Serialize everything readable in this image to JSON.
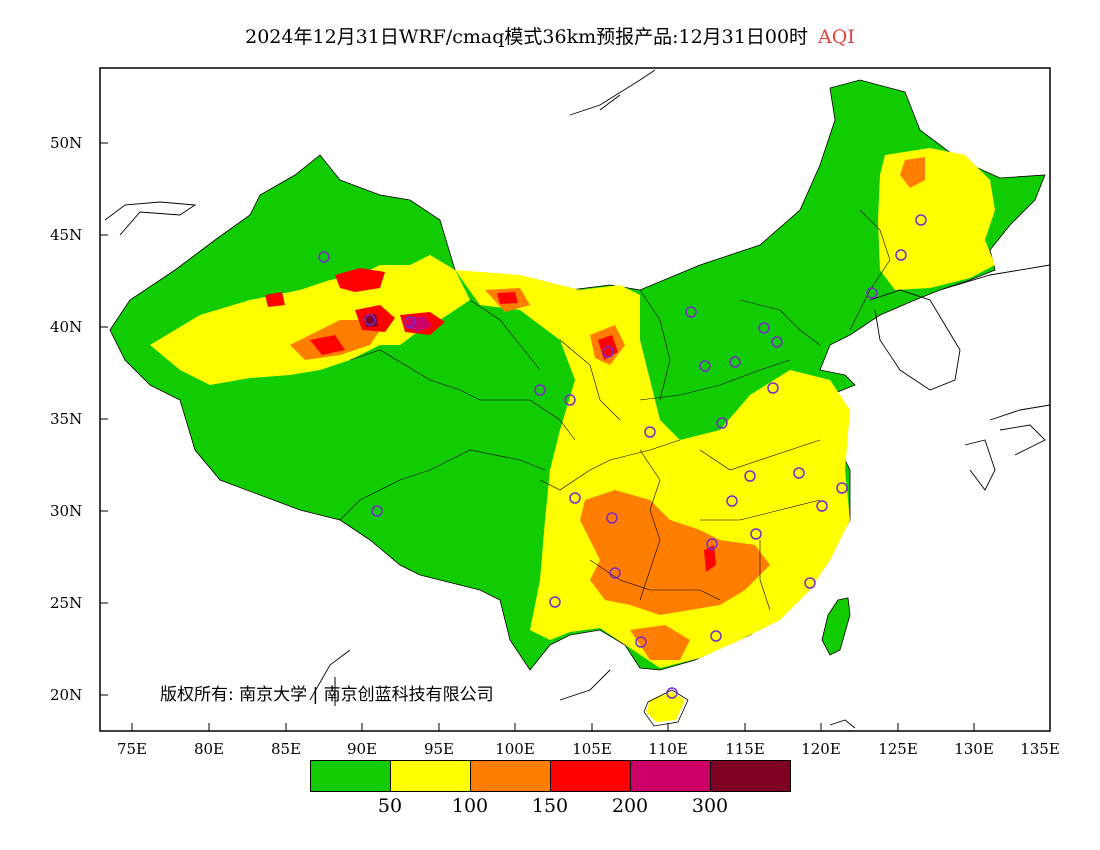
{
  "title": {
    "main": "2024年12月31日WRF/cmaq模式36km预报产品:12月31日00时",
    "variable": "AQI"
  },
  "axes": {
    "lat_labels": [
      "50N",
      "45N",
      "40N",
      "35N",
      "30N",
      "25N",
      "20N"
    ],
    "lon_labels": [
      "75E",
      "80E",
      "85E",
      "90E",
      "95E",
      "100E",
      "105E",
      "110E",
      "115E",
      "120E",
      "125E",
      "130E",
      "135E"
    ]
  },
  "colorbar": {
    "colors": [
      "#11cc00",
      "#ffff00",
      "#ff7e00",
      "#ff0000",
      "#cc0066",
      "#7e0023"
    ],
    "labels": [
      "50",
      "100",
      "150",
      "200",
      "300"
    ]
  },
  "copyright": "版权所有: 南京大学 | 南京创蓝科技有限公司",
  "colors": {
    "ocean": "#ffffff",
    "border": "#000000",
    "station_marker": "#7a2cc8"
  }
}
